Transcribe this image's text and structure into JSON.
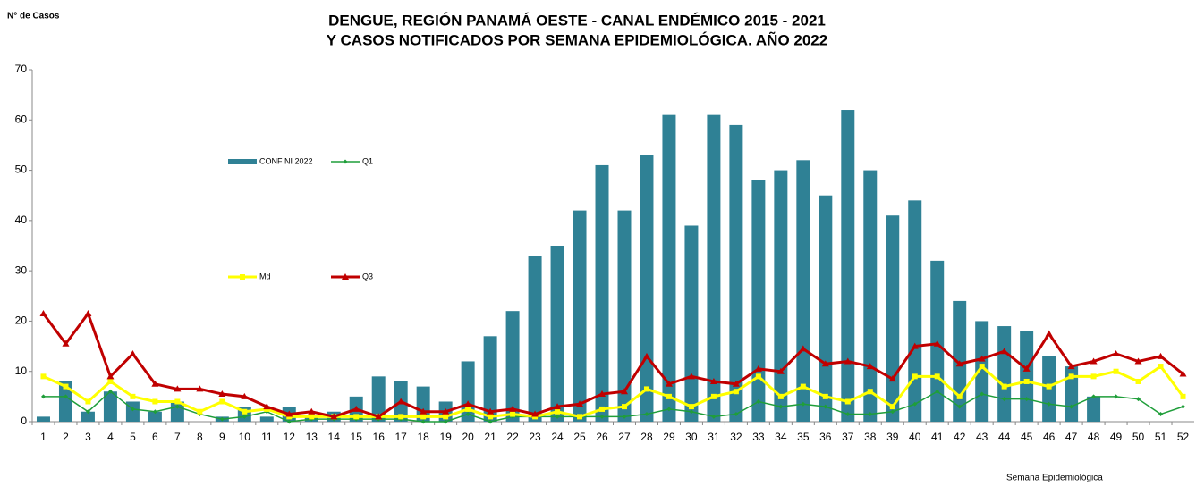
{
  "chart_data": {
    "type": "bar-line",
    "title": [
      "DENGUE, REGIÓN PANAMÁ OESTE - CANAL ENDÉMICO 2015 - 2021",
      "Y CASOS NOTIFICADOS POR SEMANA EPIDEMIOLÓGICA. AÑO 2022"
    ],
    "y_label": "N° de Casos",
    "x_label": "Semana Epidemiológica",
    "categories": [
      1,
      2,
      3,
      4,
      5,
      6,
      7,
      8,
      9,
      10,
      11,
      12,
      13,
      14,
      15,
      16,
      17,
      18,
      19,
      20,
      21,
      22,
      23,
      24,
      25,
      26,
      27,
      28,
      29,
      30,
      31,
      32,
      33,
      34,
      35,
      36,
      37,
      38,
      39,
      40,
      41,
      42,
      43,
      44,
      45,
      46,
      47,
      48,
      49,
      50,
      51,
      52
    ],
    "ylim": [
      0,
      70
    ],
    "yticks": [
      0,
      10,
      20,
      30,
      40,
      50,
      60,
      70
    ],
    "series": [
      {
        "name": "CONF NI 2022",
        "kind": "bar",
        "color": "#2f8195",
        "values": [
          1,
          8,
          2,
          6,
          4,
          2,
          4,
          0,
          1,
          3,
          1,
          3,
          1,
          2,
          5,
          9,
          8,
          7,
          4,
          12,
          17,
          22,
          33,
          35,
          42,
          51,
          42,
          53,
          61,
          39,
          61,
          59,
          48,
          50,
          52,
          45,
          62,
          50,
          41,
          44,
          32,
          24,
          20,
          19,
          18,
          13,
          11,
          5,
          null,
          null,
          null,
          null
        ]
      },
      {
        "name": "Q1",
        "kind": "line",
        "marker": "diamond",
        "color": "#1f9e3a",
        "values": [
          5,
          5,
          2,
          6,
          2.5,
          2,
          3,
          1.5,
          0.5,
          1,
          2,
          0,
          0.5,
          0.5,
          0.5,
          0.5,
          0.5,
          0,
          0,
          1.5,
          0,
          1,
          1,
          1,
          1,
          1,
          1,
          1.5,
          2.5,
          2,
          1,
          1.5,
          4,
          3,
          3.5,
          3,
          1.5,
          1.5,
          2,
          3.5,
          6,
          3,
          5.5,
          4.5,
          4.5,
          3.5,
          3,
          5,
          5,
          4.5,
          1.5,
          3
        ]
      },
      {
        "name": "Md",
        "kind": "line",
        "marker": "square",
        "color": "#ffff00",
        "values": [
          9,
          7,
          4,
          8,
          5,
          4,
          4,
          2,
          4,
          2,
          2.5,
          1,
          1,
          1,
          1,
          1,
          1,
          1,
          1,
          2.5,
          1,
          1.5,
          1,
          2,
          1,
          2.5,
          3,
          6.5,
          5,
          3,
          5,
          6,
          9,
          5,
          7,
          5,
          4,
          6,
          3,
          9,
          9,
          5,
          11,
          7,
          8,
          7,
          9,
          9,
          10,
          8,
          11,
          5
        ]
      },
      {
        "name": "Q3",
        "kind": "line",
        "marker": "triangle",
        "color": "#c00000",
        "values": [
          21.5,
          15.5,
          21.5,
          9,
          13.5,
          7.5,
          6.5,
          6.5,
          5.5,
          5,
          3,
          1.5,
          2,
          1,
          2.5,
          1,
          4,
          2,
          2,
          3.5,
          2,
          2.5,
          1.5,
          3,
          3.5,
          5.5,
          6,
          13,
          7.5,
          9,
          8,
          7.5,
          10.5,
          10,
          14.5,
          11.5,
          12,
          11,
          8.5,
          15,
          15.5,
          11.5,
          12.5,
          14,
          10.5,
          17.5,
          11,
          12,
          13.5,
          12,
          13,
          9.5
        ]
      }
    ]
  }
}
